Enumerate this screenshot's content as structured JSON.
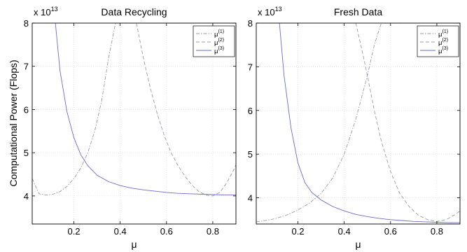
{
  "ylabel": "Computational Power (Flops)",
  "chart_data": [
    {
      "type": "line",
      "title": "Data Recycling",
      "xlabel": "μ",
      "y_multiplier": "x 10",
      "y_multiplier_exp": "13",
      "xlim": [
        0.02,
        0.9
      ],
      "ylim": [
        3.35,
        8
      ],
      "xticks": [
        "0.2",
        "0.4",
        "0.6",
        "0.8"
      ],
      "yticks": [
        "4",
        "5",
        "6",
        "7",
        "8"
      ],
      "grid": true,
      "legend_position": "top-right",
      "series": [
        {
          "name": "μ",
          "sup": "(1)",
          "style": "dash-dot",
          "color": "#9a9aae",
          "x": [
            0.02,
            0.05,
            0.08,
            0.11,
            0.14,
            0.17,
            0.2,
            0.23,
            0.26,
            0.29,
            0.32,
            0.35,
            0.38,
            0.41,
            0.44,
            0.47,
            0.5,
            0.53,
            0.56,
            0.59,
            0.62,
            0.65,
            0.68,
            0.71,
            0.74,
            0.77,
            0.8,
            0.83,
            0.86,
            0.89,
            0.9
          ],
          "y": [
            4.4,
            4.05,
            4.02,
            4.04,
            4.1,
            4.22,
            4.4,
            4.65,
            5.0,
            5.5,
            6.2,
            7.2,
            8.0,
            8.0,
            8.0,
            8.0,
            8.0,
            8.0,
            8.0,
            8.0,
            8.0,
            8.0,
            8.0,
            8.0,
            8.0,
            8.0,
            8.0,
            8.0,
            8.0,
            8.0,
            8.0
          ]
        },
        {
          "name": "μ",
          "sup": "(2)",
          "style": "dash",
          "color": "#9a9aae",
          "x": [
            0.47,
            0.5,
            0.53,
            0.56,
            0.59,
            0.62,
            0.65,
            0.68,
            0.71,
            0.74,
            0.77,
            0.8,
            0.83,
            0.86,
            0.89,
            0.9
          ],
          "y": [
            8.0,
            7.2,
            6.5,
            5.9,
            5.4,
            5.0,
            4.7,
            4.45,
            4.25,
            4.1,
            4.02,
            4.0,
            4.08,
            4.3,
            4.6,
            4.72
          ]
        },
        {
          "name": "μ",
          "sup": "(3)",
          "style": "solid",
          "color": "#6b6bcf",
          "x": [
            0.12,
            0.14,
            0.17,
            0.2,
            0.23,
            0.26,
            0.3,
            0.35,
            0.4,
            0.45,
            0.5,
            0.55,
            0.6,
            0.65,
            0.7,
            0.75,
            0.8,
            0.85,
            0.9
          ],
          "y": [
            8.0,
            6.9,
            5.95,
            5.35,
            4.95,
            4.7,
            4.48,
            4.33,
            4.24,
            4.18,
            4.14,
            4.11,
            4.08,
            4.06,
            4.05,
            4.04,
            4.03,
            4.02,
            4.02
          ]
        }
      ]
    },
    {
      "type": "line",
      "title": "Fresh Data",
      "xlabel": "μ",
      "y_multiplier": "x 10",
      "y_multiplier_exp": "13",
      "xlim": [
        0.02,
        0.9
      ],
      "ylim": [
        3.4,
        8
      ],
      "xticks": [
        "0.2",
        "0.4",
        "0.6",
        "0.8"
      ],
      "yticks": [
        "4",
        "5",
        "6",
        "7",
        "8"
      ],
      "grid": true,
      "legend_position": "top-right",
      "series": [
        {
          "name": "μ",
          "sup": "(1)",
          "style": "dash-dot",
          "color": "#9a9aae",
          "x": [
            0.02,
            0.05,
            0.1,
            0.15,
            0.2,
            0.25,
            0.3,
            0.35,
            0.4,
            0.45,
            0.5,
            0.53,
            0.56,
            0.58,
            0.6,
            0.9
          ],
          "y": [
            3.45,
            3.47,
            3.52,
            3.6,
            3.72,
            3.88,
            4.1,
            4.45,
            5.0,
            5.8,
            6.8,
            7.5,
            8.0,
            8.0,
            8.0,
            8.0
          ]
        },
        {
          "name": "μ",
          "sup": "(2)",
          "style": "dash",
          "color": "#9a9aae",
          "x": [
            0.45,
            0.48,
            0.5,
            0.53,
            0.56,
            0.6,
            0.64,
            0.68,
            0.72,
            0.76,
            0.8,
            0.84,
            0.88,
            0.9
          ],
          "y": [
            8.0,
            7.3,
            6.8,
            6.0,
            5.3,
            4.6,
            4.1,
            3.8,
            3.6,
            3.5,
            3.46,
            3.5,
            3.62,
            3.7
          ]
        },
        {
          "name": "μ",
          "sup": "(3)",
          "style": "solid",
          "color": "#6b6bcf",
          "x": [
            0.12,
            0.14,
            0.17,
            0.2,
            0.23,
            0.26,
            0.3,
            0.35,
            0.4,
            0.45,
            0.5,
            0.55,
            0.6,
            0.65,
            0.7,
            0.75,
            0.8,
            0.85,
            0.9
          ],
          "y": [
            8.0,
            6.8,
            5.6,
            4.8,
            4.35,
            4.12,
            3.95,
            3.8,
            3.7,
            3.62,
            3.57,
            3.53,
            3.5,
            3.48,
            3.46,
            3.45,
            3.44,
            3.43,
            3.43
          ]
        }
      ]
    }
  ]
}
